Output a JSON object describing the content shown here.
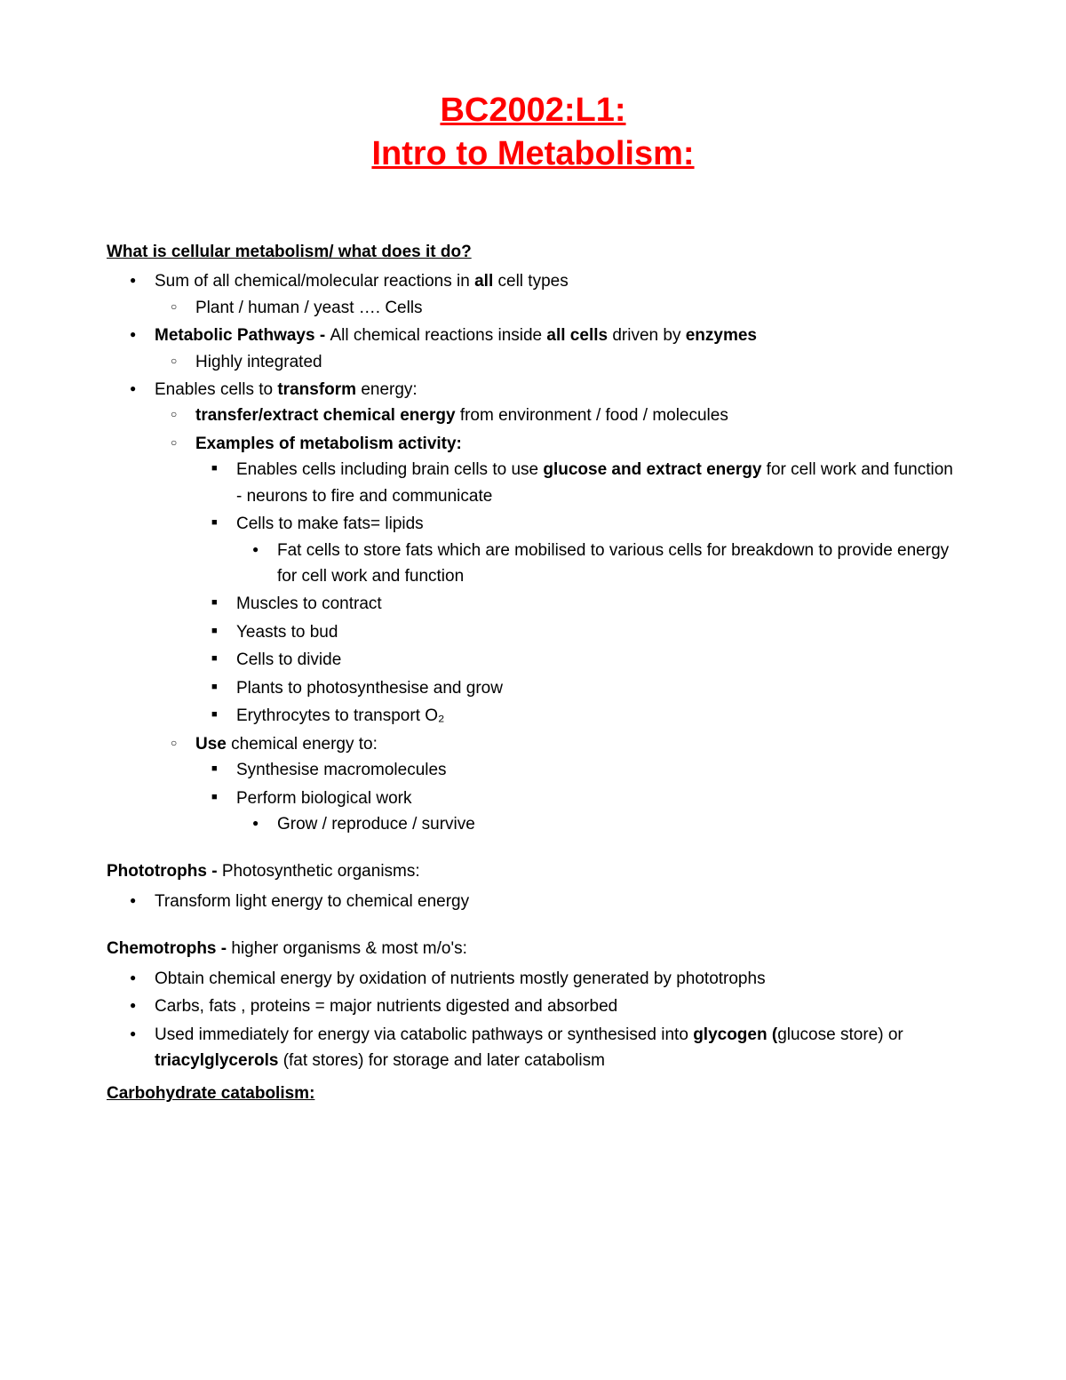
{
  "title_line1": "BC2002:L1:",
  "title_line2": "Intro to Metabolism:",
  "colors": {
    "title": "#ff0000",
    "text": "#000000",
    "background": "#ffffff"
  },
  "typography": {
    "title_fontsize": 38,
    "body_fontsize": 19,
    "font_family": "Arial"
  },
  "section1": {
    "heading": "What is cellular metabolism/ what does it do?",
    "b1_pre": "Sum of all chemical/molecular reactions in ",
    "b1_bold": "all",
    "b1_post": " cell types",
    "b1_sub1": "Plant / human / yeast …. Cells",
    "b2_bold1": "Metabolic Pathways - ",
    "b2_mid": "All chemical reactions inside ",
    "b2_bold2": "all cells",
    "b2_mid2": " driven by ",
    "b2_bold3": "enzymes",
    "b2_sub1": "Highly integrated",
    "b3_pre": "Enables cells to ",
    "b3_bold": "transform",
    "b3_post": "  energy:",
    "b3_sub1_bold": "transfer/extract chemical energy",
    "b3_sub1_post": "  from environment / food / molecules",
    "b3_sub2_bold": "Examples of metabolism activity:",
    "b3_sub2_i1_pre": "Enables cells including brain cells to use  ",
    "b3_sub2_i1_bold": "glucose and extract energy",
    "b3_sub2_i1_post": "  for cell work and function - neurons to fire and communicate",
    "b3_sub2_i2": "Cells to make fats= lipids",
    "b3_sub2_i2_sub": "Fat cells to store fats which are mobilised to various cells for breakdown to provide energy for cell work and function",
    "b3_sub2_i3": "Muscles to contract",
    "b3_sub2_i4": "Yeasts to bud",
    "b3_sub2_i5": "Cells to divide",
    "b3_sub2_i6": "Plants to photosynthesise and grow",
    "b3_sub2_i7": "Erythrocytes to transport O₂",
    "b3_sub3_bold": "Use",
    "b3_sub3_post": " chemical energy to:",
    "b3_sub3_i1": "Synthesise macromolecules",
    "b3_sub3_i2": "Perform biological work",
    "b3_sub3_i2_sub": "Grow / reproduce / survive"
  },
  "section2": {
    "heading_bold": "Phototrophs - ",
    "heading_post": "Photosynthetic organisms:",
    "b1": "Transform light energy to chemical energy"
  },
  "section3": {
    "heading_bold": "Chemotrophs - ",
    "heading_post": "higher organisms & most m/o's:",
    "b1": "Obtain chemical energy by oxidation of nutrients mostly generated by phototrophs",
    "b2": "Carbs, fats , proteins = major nutrients digested and absorbed",
    "b3_pre": "Used immediately for energy via catabolic pathways or synthesised into ",
    "b3_bold1": "glycogen (",
    "b3_mid1": "glucose store) or ",
    "b3_bold2": "triacylglycerols",
    "b3_post": " (fat stores) for storage and later catabolism"
  },
  "section4": {
    "heading": "Carbohydrate catabolism:"
  }
}
